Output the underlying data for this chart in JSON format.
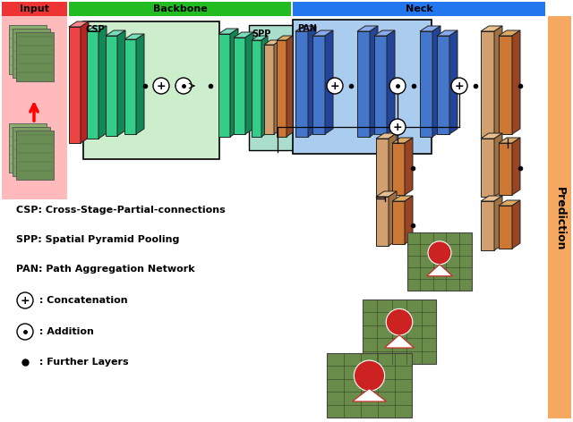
{
  "header_input": "Input",
  "header_backbone": "Backbone",
  "header_neck": "Neck",
  "header_prediction": "Prediction",
  "label_csp": "CSP",
  "label_spp": "SPP",
  "label_pan": "PAN",
  "legend_csp": "CSP: Cross-Stage-Partial-connections",
  "legend_spp": "SPP: Spatial Pyramid Pooling",
  "legend_pan": "PAN: Path Aggregation Network",
  "legend_concat": " : Concatenation",
  "legend_addition": " : Addition",
  "legend_further": " : Further Layers",
  "color_input_header": "#EE3333",
  "color_input_bg": "#FFBBBB",
  "color_backbone_header": "#22BB22",
  "color_neck_header": "#2277EE",
  "color_prediction_bg": "#F4A860",
  "color_green_face": "#33CC88",
  "color_green_side": "#118855",
  "color_green_top": "#77DDBB",
  "color_blue_face": "#4477CC",
  "color_blue_side": "#224499",
  "color_blue_top": "#88AAEE",
  "color_tan_face": "#D2A070",
  "color_tan_side": "#A07040",
  "color_tan_top": "#E8C090",
  "color_orange_face": "#CC7733",
  "color_orange_side": "#994422",
  "color_orange_top": "#DDAA66",
  "color_red_face": "#EE4444",
  "color_red_side": "#BB2222",
  "color_red_top": "#FF8888",
  "color_csp_bg": "#CCEECC",
  "color_spp_bg": "#AADDCC",
  "color_pan_bg": "#AACCEE"
}
